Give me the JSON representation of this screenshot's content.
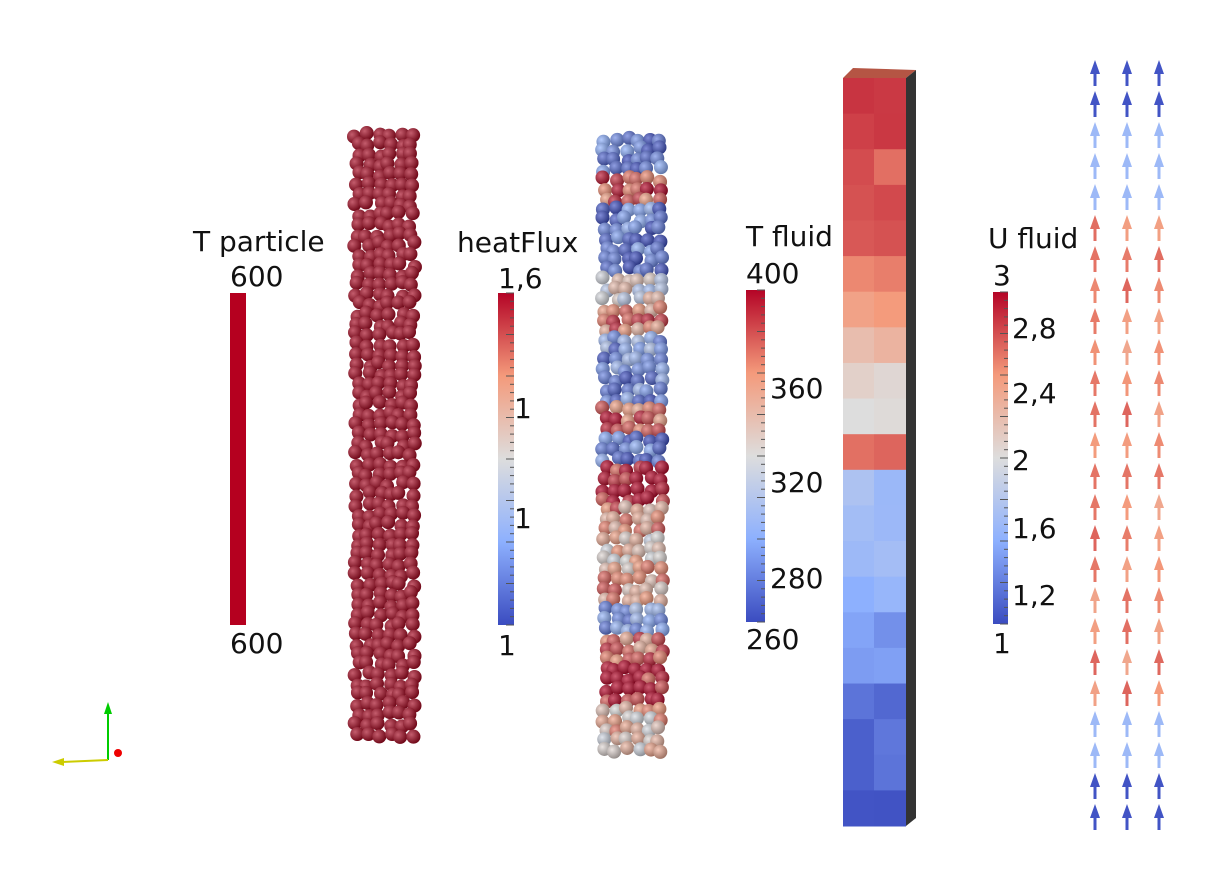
{
  "legends": [
    {
      "title": "T particle",
      "labels": [
        "600",
        "600"
      ]
    },
    {
      "title": "heatFlux",
      "labels": [
        "1,6",
        "1",
        "1",
        "1"
      ]
    },
    {
      "title": "T fluid",
      "labels": [
        "400",
        "360",
        "320",
        "280",
        "260"
      ]
    },
    {
      "title": "U fluid",
      "labels": [
        "3",
        "2,8",
        "2,4",
        "2",
        "1,6",
        "1,2",
        "1"
      ]
    }
  ]
}
